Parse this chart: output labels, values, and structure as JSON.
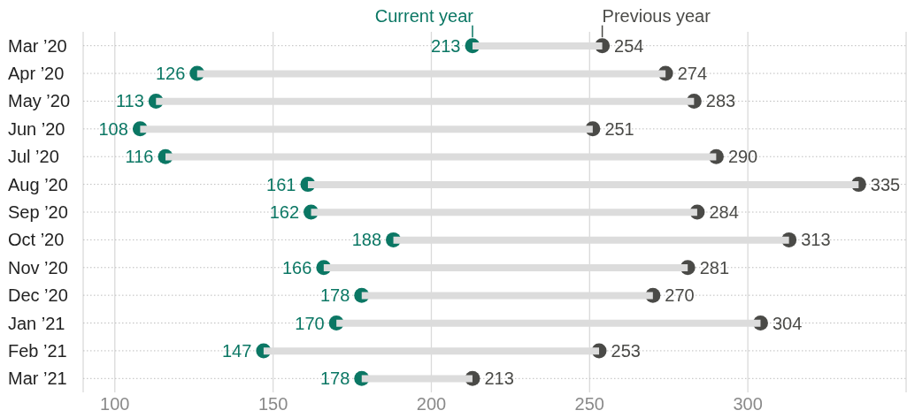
{
  "chart_data": {
    "type": "scatter",
    "orientation": "horizontal",
    "categories": [
      "Mar ’20",
      "Apr ’20",
      "May ’20",
      "Jun ’20",
      "Jul ’20",
      "Aug ’20",
      "Sep ’20",
      "Oct ’20",
      "Nov ’20",
      "Dec ’20",
      "Jan ’21",
      "Feb ’21",
      "Mar ’21"
    ],
    "xlim": [
      90,
      350
    ],
    "xticks": [
      100,
      150,
      200,
      250,
      300
    ],
    "grid": true,
    "series": [
      {
        "type": "bar",
        "color": "#dcdcdc",
        "base": [
          213,
          126,
          113,
          108,
          116,
          161,
          162,
          188,
          166,
          178,
          170,
          147,
          178
        ],
        "values": [
          41,
          148,
          170,
          143,
          174,
          174,
          122,
          125,
          115,
          92,
          134,
          106,
          35
        ]
      },
      {
        "name": "Current year",
        "color": "#0b7764",
        "marker": "circle",
        "data_labels": true,
        "values": [
          213,
          126,
          113,
          108,
          116,
          161,
          162,
          188,
          166,
          178,
          170,
          147,
          178
        ]
      },
      {
        "name": "Previous year",
        "color": "#4a4a47",
        "marker": "circle",
        "data_labels": true,
        "values": [
          254,
          274,
          283,
          251,
          290,
          335,
          284,
          313,
          281,
          270,
          304,
          253,
          213
        ]
      }
    ]
  }
}
